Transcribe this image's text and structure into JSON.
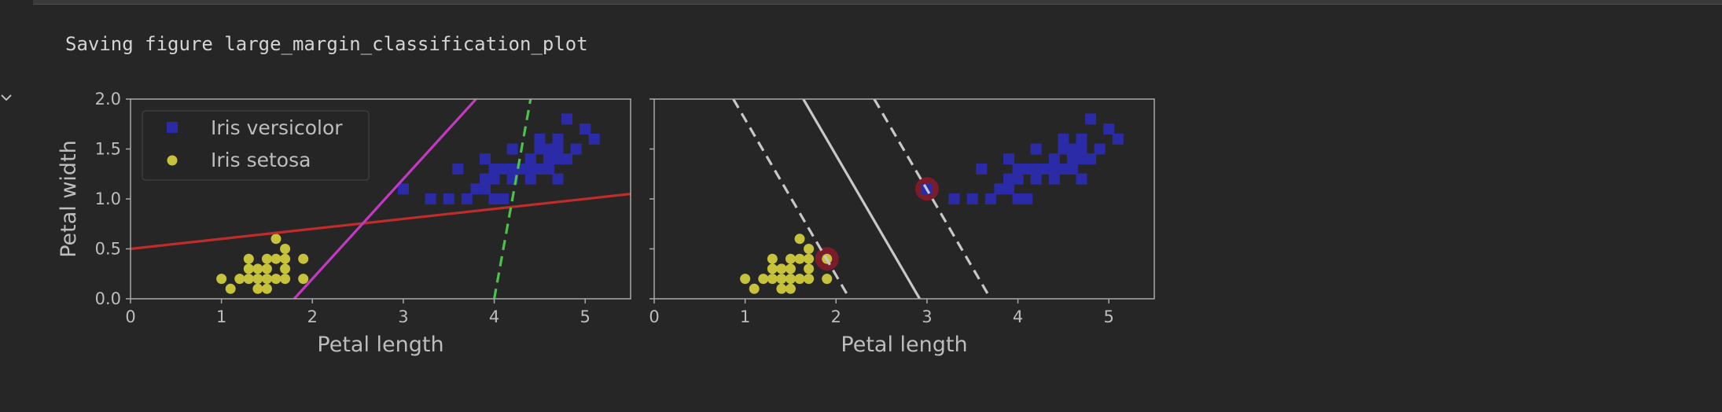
{
  "output": {
    "text": "Saving figure large_margin_classification_plot"
  },
  "colors": {
    "background": "#262626",
    "axes_edge": "#a8a8a8",
    "versicolor": "#2b2ba8",
    "setosa": "#c6c23c",
    "red_line": "#c02b2b",
    "magenta_line": "#c23ac2",
    "green_dash": "#4bc24b",
    "svm_line": "#c8c8c8",
    "support_vector": "#7a1c2a"
  },
  "chart_data": [
    {
      "type": "scatter",
      "xlabel": "Petal length",
      "ylabel": "Petal width",
      "xlim": [
        0,
        5.5
      ],
      "ylim": [
        0,
        2.0
      ],
      "xticks": [
        "0",
        "1",
        "2",
        "3",
        "4",
        "5"
      ],
      "yticks": [
        "0.0",
        "0.5",
        "1.0",
        "1.5",
        "2.0"
      ],
      "legend_position": "upper-left",
      "series": [
        {
          "name": "Iris versicolor",
          "marker": "square",
          "points": [
            [
              3.0,
              1.1
            ],
            [
              3.3,
              1.0
            ],
            [
              3.5,
              1.0
            ],
            [
              3.6,
              1.3
            ],
            [
              3.7,
              1.0
            ],
            [
              3.8,
              1.1
            ],
            [
              3.9,
              1.1
            ],
            [
              3.9,
              1.2
            ],
            [
              3.9,
              1.4
            ],
            [
              4.0,
              1.0
            ],
            [
              4.0,
              1.2
            ],
            [
              4.0,
              1.3
            ],
            [
              4.1,
              1.0
            ],
            [
              4.1,
              1.3
            ],
            [
              4.2,
              1.2
            ],
            [
              4.2,
              1.3
            ],
            [
              4.2,
              1.5
            ],
            [
              4.3,
              1.3
            ],
            [
              4.4,
              1.2
            ],
            [
              4.4,
              1.3
            ],
            [
              4.4,
              1.4
            ],
            [
              4.5,
              1.3
            ],
            [
              4.5,
              1.5
            ],
            [
              4.5,
              1.6
            ],
            [
              4.6,
              1.3
            ],
            [
              4.6,
              1.4
            ],
            [
              4.6,
              1.5
            ],
            [
              4.7,
              1.2
            ],
            [
              4.7,
              1.4
            ],
            [
              4.7,
              1.5
            ],
            [
              4.7,
              1.6
            ],
            [
              4.8,
              1.4
            ],
            [
              4.8,
              1.8
            ],
            [
              4.9,
              1.5
            ],
            [
              5.0,
              1.7
            ],
            [
              5.1,
              1.6
            ]
          ]
        },
        {
          "name": "Iris setosa",
          "marker": "circle",
          "points": [
            [
              1.0,
              0.2
            ],
            [
              1.1,
              0.1
            ],
            [
              1.2,
              0.2
            ],
            [
              1.3,
              0.2
            ],
            [
              1.3,
              0.3
            ],
            [
              1.3,
              0.4
            ],
            [
              1.4,
              0.1
            ],
            [
              1.4,
              0.2
            ],
            [
              1.4,
              0.3
            ],
            [
              1.5,
              0.1
            ],
            [
              1.5,
              0.2
            ],
            [
              1.5,
              0.3
            ],
            [
              1.5,
              0.4
            ],
            [
              1.6,
              0.2
            ],
            [
              1.6,
              0.4
            ],
            [
              1.6,
              0.6
            ],
            [
              1.7,
              0.2
            ],
            [
              1.7,
              0.3
            ],
            [
              1.7,
              0.4
            ],
            [
              1.7,
              0.5
            ],
            [
              1.9,
              0.2
            ],
            [
              1.9,
              0.4
            ]
          ]
        }
      ],
      "lines": [
        {
          "style": "solid",
          "color": "red_line",
          "points": [
            [
              0,
              0.5
            ],
            [
              5.5,
              1.05
            ]
          ]
        },
        {
          "style": "solid",
          "color": "magenta_line",
          "points": [
            [
              1.8,
              0
            ],
            [
              3.8,
              2.0
            ]
          ]
        },
        {
          "style": "dashed",
          "color": "green_dash",
          "points": [
            [
              4.0,
              0
            ],
            [
              4.4,
              2.0
            ]
          ]
        }
      ]
    },
    {
      "type": "scatter",
      "xlabel": "Petal length",
      "ylabel": "",
      "xlim": [
        0,
        5.5
      ],
      "ylim": [
        0,
        2.0
      ],
      "xticks": [
        "0",
        "1",
        "2",
        "3",
        "4",
        "5"
      ],
      "ytick_labels_visible": false,
      "series": [
        {
          "name": "Iris versicolor",
          "marker": "square",
          "points": [
            [
              3.0,
              1.1
            ],
            [
              3.3,
              1.0
            ],
            [
              3.5,
              1.0
            ],
            [
              3.6,
              1.3
            ],
            [
              3.7,
              1.0
            ],
            [
              3.8,
              1.1
            ],
            [
              3.9,
              1.1
            ],
            [
              3.9,
              1.2
            ],
            [
              3.9,
              1.4
            ],
            [
              4.0,
              1.0
            ],
            [
              4.0,
              1.2
            ],
            [
              4.0,
              1.3
            ],
            [
              4.1,
              1.0
            ],
            [
              4.1,
              1.3
            ],
            [
              4.2,
              1.2
            ],
            [
              4.2,
              1.3
            ],
            [
              4.2,
              1.5
            ],
            [
              4.3,
              1.3
            ],
            [
              4.4,
              1.2
            ],
            [
              4.4,
              1.3
            ],
            [
              4.4,
              1.4
            ],
            [
              4.5,
              1.3
            ],
            [
              4.5,
              1.5
            ],
            [
              4.5,
              1.6
            ],
            [
              4.6,
              1.3
            ],
            [
              4.6,
              1.4
            ],
            [
              4.6,
              1.5
            ],
            [
              4.7,
              1.2
            ],
            [
              4.7,
              1.4
            ],
            [
              4.7,
              1.5
            ],
            [
              4.7,
              1.6
            ],
            [
              4.8,
              1.4
            ],
            [
              4.8,
              1.8
            ],
            [
              4.9,
              1.5
            ],
            [
              5.0,
              1.7
            ],
            [
              5.1,
              1.6
            ]
          ]
        },
        {
          "name": "Iris setosa",
          "marker": "circle",
          "points": [
            [
              1.0,
              0.2
            ],
            [
              1.1,
              0.1
            ],
            [
              1.2,
              0.2
            ],
            [
              1.3,
              0.2
            ],
            [
              1.3,
              0.3
            ],
            [
              1.3,
              0.4
            ],
            [
              1.4,
              0.1
            ],
            [
              1.4,
              0.2
            ],
            [
              1.4,
              0.3
            ],
            [
              1.5,
              0.1
            ],
            [
              1.5,
              0.2
            ],
            [
              1.5,
              0.3
            ],
            [
              1.5,
              0.4
            ],
            [
              1.6,
              0.2
            ],
            [
              1.6,
              0.4
            ],
            [
              1.6,
              0.6
            ],
            [
              1.7,
              0.2
            ],
            [
              1.7,
              0.3
            ],
            [
              1.7,
              0.4
            ],
            [
              1.7,
              0.5
            ],
            [
              1.9,
              0.2
            ],
            [
              1.9,
              0.4
            ]
          ]
        }
      ],
      "support_vectors": [
        [
          1.9,
          0.4
        ],
        [
          3.0,
          1.1
        ]
      ],
      "lines": [
        {
          "style": "solid",
          "color": "svm_line",
          "points": [
            [
              1.64,
              2.0
            ],
            [
              2.92,
              0
            ]
          ]
        },
        {
          "style": "dashed",
          "color": "svm_line",
          "points": [
            [
              0.87,
              2.0
            ],
            [
              2.15,
              0
            ]
          ]
        },
        {
          "style": "dashed",
          "color": "svm_line",
          "points": [
            [
              2.42,
              2.0
            ],
            [
              3.7,
              0
            ]
          ]
        }
      ]
    }
  ]
}
